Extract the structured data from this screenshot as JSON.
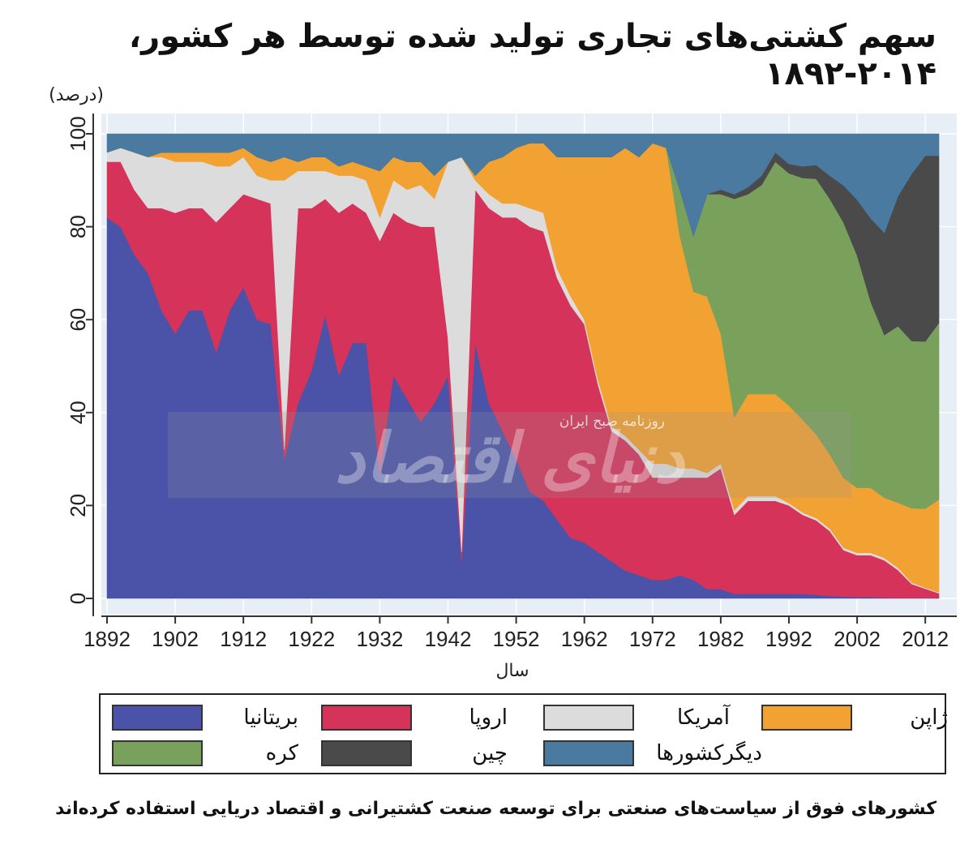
{
  "title": "سهم کشتی‌های تجاری تولید شده توسط هر کشور، ۲۰۱۴-۱۸۹۲",
  "footnote": "کشورهای فوق از سیاست‌های صنعتی برای توسعه صنعت کشتیرانی و اقتصاد دریایی استفاده کرده‌اند",
  "watermark": {
    "main": "دنیای اقتصاد",
    "sub": "روزنامه صبح ایران"
  },
  "chart_data": {
    "type": "area",
    "stacked": true,
    "ylabel": "(درصد)",
    "xlabel": "سال",
    "xlim": [
      1892,
      2014
    ],
    "ylim": [
      0,
      100
    ],
    "x_ticks": [
      1892,
      1902,
      1912,
      1922,
      1932,
      1942,
      1952,
      1962,
      1972,
      1982,
      1992,
      2002,
      2012
    ],
    "y_ticks": [
      0,
      20,
      40,
      60,
      80,
      100
    ],
    "grid": true,
    "legend_position": "bottom",
    "x": [
      1892,
      1894,
      1896,
      1898,
      1900,
      1902,
      1904,
      1906,
      1908,
      1910,
      1912,
      1914,
      1916,
      1918,
      1920,
      1922,
      1924,
      1926,
      1928,
      1930,
      1932,
      1934,
      1936,
      1938,
      1940,
      1942,
      1944,
      1946,
      1948,
      1950,
      1952,
      1954,
      1956,
      1958,
      1960,
      1962,
      1964,
      1966,
      1968,
      1970,
      1972,
      1974,
      1976,
      1978,
      1980,
      1982,
      1984,
      1986,
      1988,
      1990,
      1992,
      1994,
      1996,
      1998,
      2000,
      2002,
      2004,
      2006,
      2008,
      2010,
      2012,
      2014
    ],
    "series": [
      {
        "name": "بریتانیا",
        "color": "#4a53a8",
        "values": [
          82,
          80,
          74,
          70,
          62,
          57,
          62,
          62,
          53,
          62,
          67,
          60,
          59,
          30,
          42,
          49,
          61,
          48,
          55,
          55,
          27,
          48,
          43,
          38,
          42,
          48,
          8,
          55,
          42,
          36,
          30,
          23,
          21,
          17,
          13,
          12,
          10,
          8,
          6,
          5,
          4,
          4,
          5,
          4,
          2,
          2,
          1,
          1,
          1,
          1,
          1,
          1,
          0.8,
          0.5,
          0.4,
          0.3,
          0.3,
          0.2,
          0.1,
          0.1,
          0.1,
          0.1
        ]
      },
      {
        "name": "اروپا",
        "color": "#d6335a",
        "values": [
          12,
          14,
          14,
          14,
          22,
          26,
          22,
          22,
          28,
          22,
          20,
          26,
          26,
          2,
          42,
          35,
          25,
          35,
          30,
          28,
          50,
          35,
          38,
          42,
          38,
          8,
          2,
          33,
          42,
          46,
          52,
          57,
          58,
          52,
          50,
          47,
          36,
          28,
          28,
          26,
          22,
          22,
          21,
          22,
          24,
          26,
          17,
          20,
          20,
          20,
          19,
          17,
          16,
          14,
          10,
          9,
          9,
          8,
          6,
          3,
          2,
          1
        ]
      },
      {
        "name": "آمریکا",
        "color": "#dcdcdc",
        "values": [
          2,
          3,
          8,
          11,
          11,
          11,
          10,
          10,
          12,
          9,
          8,
          5,
          5,
          58,
          8,
          8,
          6,
          8,
          6,
          7,
          5,
          7,
          7,
          9,
          6,
          38,
          85,
          2,
          3,
          3,
          3,
          4,
          4,
          2,
          2,
          1,
          1,
          1,
          1,
          1,
          3,
          3,
          2,
          2,
          1,
          1,
          1,
          1,
          1,
          1,
          0.5,
          0.5,
          0.5,
          0.5,
          0.5,
          0.5,
          0.5,
          0.5,
          0.5,
          0.3,
          0.2,
          0.2
        ]
      },
      {
        "name": "ژاپن",
        "color": "#f2a133",
        "values": [
          0,
          0,
          0,
          0,
          1,
          2,
          2,
          2,
          3,
          3,
          2,
          4,
          4,
          5,
          2,
          3,
          3,
          2,
          3,
          3,
          10,
          5,
          6,
          5,
          5,
          0,
          0,
          1,
          7,
          10,
          12,
          14,
          15,
          24,
          30,
          35,
          48,
          58,
          62,
          63,
          69,
          68,
          50,
          38,
          38,
          28,
          20,
          22,
          22,
          22,
          21,
          20,
          18,
          16,
          15,
          14,
          14,
          13,
          14,
          16,
          17,
          20
        ]
      },
      {
        "name": "کره",
        "color": "#7aa15c",
        "values": [
          0,
          0,
          0,
          0,
          0,
          0,
          0,
          0,
          0,
          0,
          0,
          0,
          0,
          0,
          0,
          0,
          0,
          0,
          0,
          0,
          0,
          0,
          0,
          0,
          0,
          0,
          0,
          0,
          0,
          0,
          0,
          0,
          0,
          0,
          0,
          0,
          0,
          0,
          0,
          0,
          0,
          0,
          10,
          12,
          22,
          30,
          47,
          43,
          45,
          50,
          50,
          52,
          55,
          55,
          55,
          50,
          40,
          35,
          38,
          36,
          36,
          38
        ]
      },
      {
        "name": "چین",
        "color": "#4a4a4a",
        "values": [
          0,
          0,
          0,
          0,
          0,
          0,
          0,
          0,
          0,
          0,
          0,
          0,
          0,
          0,
          0,
          0,
          0,
          0,
          0,
          0,
          0,
          0,
          0,
          0,
          0,
          0,
          0,
          0,
          0,
          0,
          0,
          0,
          0,
          0,
          0,
          0,
          0,
          0,
          0,
          0,
          0,
          0,
          0,
          0,
          0,
          1,
          1,
          1.5,
          2,
          2,
          2,
          2.5,
          3,
          5,
          8,
          12,
          18,
          22,
          28,
          36,
          40,
          36
        ]
      },
      {
        "name": "دیگرکشورها",
        "color": "#4a7aa0",
        "values": [
          4,
          3,
          4,
          5,
          4,
          4,
          4,
          4,
          4,
          4,
          3,
          5,
          6,
          5,
          6,
          5,
          5,
          7,
          6,
          7,
          8,
          5,
          6,
          6,
          9,
          6,
          5,
          9,
          6,
          5,
          3,
          2,
          2,
          5,
          5,
          5,
          5,
          5,
          3,
          5,
          2,
          3,
          12,
          22,
          13,
          12,
          13,
          11.5,
          10,
          4,
          6.5,
          7,
          6.7,
          9,
          11.1,
          14.2,
          18.2,
          21.3,
          13.4,
          8.6,
          4.7,
          4.7
        ]
      }
    ]
  }
}
